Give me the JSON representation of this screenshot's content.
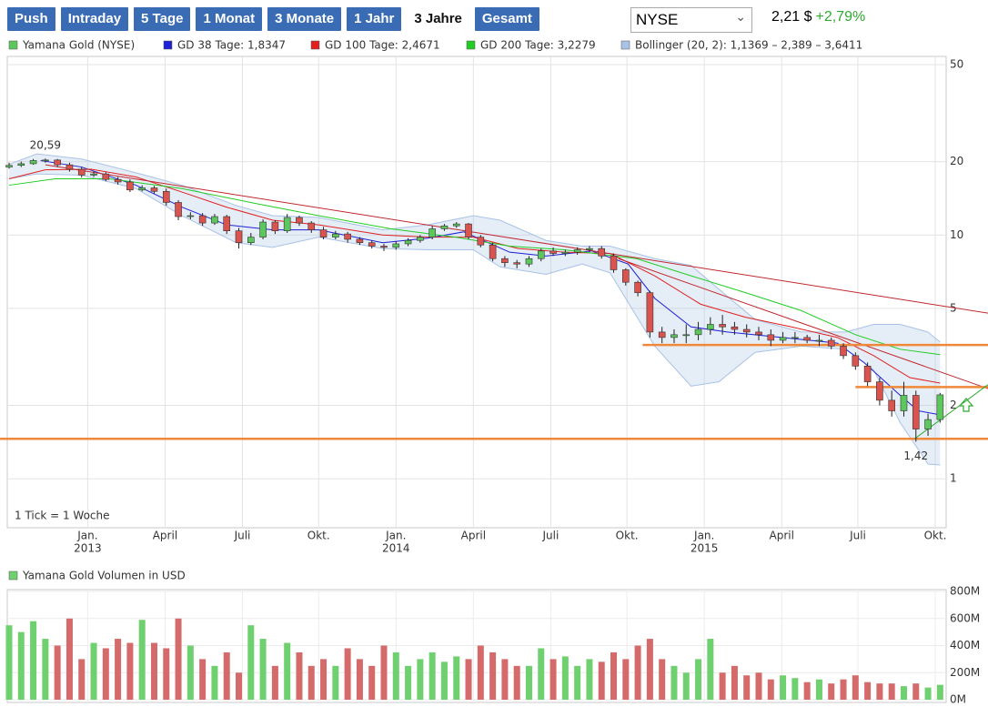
{
  "toolbar": {
    "tabs": [
      "Push",
      "Intraday",
      "5 Tage",
      "1 Monat",
      "3 Monate",
      "1 Jahr",
      "3 Jahre",
      "Gesamt"
    ],
    "active_tab": 6,
    "exchange": "NYSE",
    "price": "2,21 $",
    "change": "+2,79%"
  },
  "chart_data": [
    {
      "type": "candlestick",
      "yscale": "log",
      "grid": true,
      "xlim": [
        -0.15,
        77.5
      ],
      "ylim": [
        0.63,
        54
      ],
      "yticks": [
        1,
        2,
        5,
        10,
        20,
        50
      ],
      "xticks": [
        {
          "value": 6.5,
          "label": "Jan."
        },
        {
          "value": 12.9,
          "label": "April"
        },
        {
          "value": 19.3,
          "label": "Juli"
        },
        {
          "value": 25.6,
          "label": "Okt."
        },
        {
          "value": 32,
          "label": "Jan."
        },
        {
          "value": 38.4,
          "label": "April"
        },
        {
          "value": 44.8,
          "label": "Juli"
        },
        {
          "value": 51.1,
          "label": "Okt."
        },
        {
          "value": 57.5,
          "label": "Jan."
        },
        {
          "value": 63.9,
          "label": "April"
        },
        {
          "value": 70.2,
          "label": "Juli"
        },
        {
          "value": 76.6,
          "label": "Okt."
        }
      ],
      "xyears": [
        {
          "value": 6.5,
          "label": "2013"
        },
        {
          "value": 32,
          "label": "2014"
        },
        {
          "value": 57.5,
          "label": "2015"
        }
      ],
      "note": "1 Tick = 1 Woche",
      "candles": {
        "name": "Yamana Gold (NYSE)",
        "up_color": "#5cc75c",
        "down_color": "#d9534f",
        "open": [
          19.0,
          19.3,
          19.6,
          20.2,
          20.3,
          19.4,
          18.6,
          17.6,
          17.8,
          16.9,
          16.5,
          15.3,
          15.6,
          15.1,
          13.6,
          11.9,
          12.0,
          11.2,
          11.9,
          10.4,
          9.3,
          9.8,
          11.3,
          10.4,
          11.8,
          11.2,
          10.5,
          9.8,
          10.1,
          9.6,
          9.3,
          9.0,
          8.9,
          9.2,
          9.5,
          9.8,
          10.6,
          10.9,
          11.1,
          9.8,
          9.1,
          8.0,
          7.7,
          7.6,
          8.0,
          8.6,
          8.4,
          8.5,
          8.7,
          8.8,
          8.2,
          7.2,
          6.4,
          5.8,
          4.0,
          3.8,
          3.9,
          3.9,
          4.1,
          4.3,
          4.2,
          4.1,
          4.0,
          3.9,
          3.7,
          3.8,
          3.8,
          3.7,
          3.7,
          3.5,
          3.2,
          2.9,
          2.5,
          2.1,
          1.9,
          2.2,
          1.6,
          1.75
        ],
        "high": [
          19.8,
          20.0,
          20.5,
          20.59,
          20.5,
          19.8,
          19.0,
          18.2,
          18.1,
          17.3,
          16.9,
          16.0,
          15.9,
          15.5,
          13.9,
          12.4,
          12.3,
          12.2,
          12.1,
          10.7,
          10.2,
          11.6,
          11.5,
          12.2,
          12.0,
          11.4,
          10.8,
          10.4,
          10.3,
          9.8,
          9.5,
          9.2,
          9.4,
          9.7,
          10.0,
          10.9,
          11.1,
          11.3,
          11.2,
          10.0,
          9.3,
          8.2,
          7.9,
          8.2,
          8.8,
          8.9,
          8.7,
          8.9,
          9.0,
          9.0,
          8.4,
          7.3,
          6.5,
          5.9,
          4.2,
          4.1,
          4.3,
          4.4,
          4.6,
          4.7,
          4.4,
          4.3,
          4.2,
          4.1,
          4.0,
          4.0,
          3.9,
          3.9,
          3.8,
          3.6,
          3.3,
          3.0,
          2.6,
          2.3,
          2.5,
          2.3,
          1.85,
          2.25
        ],
        "low": [
          18.7,
          19.0,
          19.4,
          19.8,
          19.0,
          18.2,
          17.2,
          17.3,
          16.6,
          16.1,
          15.0,
          15.1,
          14.8,
          13.2,
          11.5,
          11.6,
          10.9,
          11.0,
          10.1,
          8.8,
          9.1,
          9.6,
          10.1,
          10.2,
          10.9,
          10.2,
          9.6,
          9.6,
          9.3,
          9.1,
          8.8,
          8.6,
          8.7,
          9.0,
          9.3,
          9.6,
          10.4,
          10.7,
          9.6,
          8.9,
          7.8,
          7.4,
          7.3,
          7.4,
          7.8,
          8.2,
          8.2,
          8.3,
          8.5,
          8.0,
          7.0,
          6.2,
          5.6,
          3.8,
          3.6,
          3.6,
          3.6,
          3.7,
          3.9,
          3.9,
          3.9,
          3.8,
          3.7,
          3.5,
          3.6,
          3.6,
          3.6,
          3.5,
          3.4,
          3.1,
          2.8,
          2.4,
          2.0,
          1.8,
          1.8,
          1.42,
          1.5,
          1.7
        ],
        "close": [
          19.3,
          19.6,
          20.2,
          20.3,
          19.4,
          18.6,
          17.6,
          17.8,
          16.9,
          16.5,
          15.3,
          15.6,
          15.1,
          13.6,
          11.9,
          12.0,
          11.2,
          11.9,
          10.4,
          9.3,
          9.8,
          11.3,
          10.4,
          11.8,
          11.2,
          10.5,
          9.8,
          10.1,
          9.6,
          9.3,
          9.0,
          8.9,
          9.2,
          9.5,
          9.8,
          10.6,
          10.9,
          11.1,
          9.8,
          9.1,
          8.0,
          7.7,
          7.6,
          8.0,
          8.6,
          8.4,
          8.5,
          8.7,
          8.8,
          8.2,
          7.2,
          6.4,
          5.8,
          4.0,
          3.8,
          3.9,
          3.9,
          4.1,
          4.3,
          4.2,
          4.1,
          4.0,
          3.9,
          3.7,
          3.8,
          3.8,
          3.7,
          3.7,
          3.5,
          3.2,
          2.9,
          2.5,
          2.1,
          1.9,
          2.2,
          1.6,
          1.75,
          2.21
        ]
      },
      "series": [
        {
          "name": "GD 38 Tage: 1,8347",
          "color": "#1f1fd6",
          "x": [
            2.6,
            6,
            10.5,
            14.3,
            18,
            21.8,
            25.6,
            30.9,
            34.6,
            37.6,
            41.4,
            44.4,
            48.2,
            51.2,
            53.4,
            56.4,
            59.4,
            63.9,
            68.5,
            70.7,
            73.7,
            75.2,
            77
          ],
          "values": [
            20.2,
            19,
            16,
            13,
            11,
            10.5,
            10.5,
            9.3,
            9.7,
            10.3,
            8.5,
            8.2,
            8.6,
            7.6,
            5.5,
            4.2,
            4.0,
            3.8,
            3.6,
            3.0,
            2.2,
            1.9,
            1.83
          ]
        },
        {
          "name": "GD 100 Tage: 2,4671",
          "color": "#e02020",
          "x": [
            0,
            3,
            6.8,
            10.5,
            14.3,
            18,
            21.8,
            25.6,
            30.9,
            34.6,
            38.4,
            42.1,
            45.9,
            49.7,
            53.4,
            57.2,
            60.9,
            64.7,
            68.5,
            71.5,
            74.5,
            77
          ],
          "values": [
            17,
            18.5,
            18.6,
            17.3,
            15,
            13,
            11.5,
            11,
            10,
            9.8,
            9.8,
            8.8,
            8.5,
            8.4,
            6.8,
            5.2,
            4.6,
            4.2,
            3.8,
            3.2,
            2.6,
            2.47
          ]
        },
        {
          "name": "GD 200 Tage: 3,2279",
          "color": "#22cc22",
          "x": [
            0,
            3.8,
            8.3,
            14.3,
            20.3,
            25.6,
            31.6,
            36.9,
            41.4,
            45.9,
            51.9,
            56.4,
            60.9,
            65.5,
            70,
            73.7,
            77
          ],
          "values": [
            16,
            17,
            17,
            15.5,
            13.5,
            12,
            10.6,
            9.8,
            9,
            8.7,
            8.0,
            6.8,
            5.8,
            4.9,
            3.9,
            3.4,
            3.23
          ]
        }
      ],
      "band": {
        "name": "Bollinger (20, 2): 1,1369 – 2,389 – 3,6411",
        "color": "#a9c2e6",
        "x": [
          0,
          2.3,
          6,
          10.5,
          14.3,
          18.8,
          21.8,
          25.6,
          30.9,
          34.6,
          38.4,
          40.6,
          44.4,
          47.4,
          49.7,
          53.4,
          56.4,
          58.7,
          61.7,
          65.5,
          69.2,
          71.5,
          73.7,
          76,
          77
        ],
        "upper": [
          19.5,
          21.5,
          20.5,
          18,
          16,
          13.2,
          12,
          11.8,
          10.5,
          11,
          12,
          11.5,
          9.5,
          9.0,
          9.0,
          8.0,
          7.5,
          6.0,
          4.5,
          4.0,
          4.0,
          4.3,
          4.3,
          4.0,
          3.64
        ],
        "lower": [
          17,
          17.8,
          17.6,
          15.5,
          12,
          9.3,
          8.9,
          9.8,
          8.8,
          8.7,
          8.7,
          7.4,
          6.9,
          7.6,
          7.0,
          3.5,
          2.4,
          2.5,
          3.3,
          3.5,
          3.4,
          2.8,
          1.7,
          1.15,
          1.14
        ]
      },
      "annotations": [
        {
          "label": "20,59",
          "x": 3,
          "value": 20.59,
          "position": "above"
        },
        {
          "label": "1,42",
          "x": 75,
          "value": 1.42,
          "position": "below"
        }
      ],
      "levels": [
        {
          "color": "#c0282d",
          "x": [
            3,
            81
          ],
          "values": [
            19.4,
            4.78
          ]
        },
        {
          "color": "#c0282d",
          "x": [
            50.4,
            81
          ],
          "values": [
            8.0,
            2.34
          ]
        },
        {
          "color": "#f0883a",
          "x": [
            52.4,
            81
          ],
          "values": [
            3.54,
            3.54
          ]
        },
        {
          "color": "#f0883a",
          "x": [
            -0.75,
            81
          ],
          "values": [
            1.46,
            1.46
          ]
        },
        {
          "color": "#f0883a",
          "x": [
            70,
            81
          ],
          "values": [
            2.38,
            2.38
          ]
        },
        {
          "color": "#2eaa2e",
          "x": [
            74.9,
            81
          ],
          "values": [
            1.46,
            2.44
          ]
        }
      ]
    },
    {
      "type": "bar",
      "title": "Yamana Gold Volumen in USD",
      "up_color": "#6fd06f",
      "down_color": "#d46a6a",
      "xlim": [
        -0.15,
        77.5
      ],
      "ylim": [
        0,
        800
      ],
      "yticks": [
        {
          "value": 0,
          "label": "0M"
        },
        {
          "value": 200,
          "label": "200M"
        },
        {
          "value": 400,
          "label": "400M"
        },
        {
          "value": 600,
          "label": "600M"
        },
        {
          "value": 800,
          "label": "800M"
        }
      ],
      "values": [
        550,
        500,
        580,
        450,
        400,
        600,
        300,
        420,
        380,
        450,
        420,
        590,
        420,
        380,
        600,
        400,
        300,
        250,
        350,
        200,
        550,
        450,
        250,
        420,
        350,
        250,
        300,
        250,
        380,
        300,
        250,
        400,
        350,
        250,
        300,
        350,
        280,
        320,
        300,
        400,
        350,
        300,
        250,
        250,
        380,
        300,
        320,
        250,
        300,
        280,
        350,
        300,
        400,
        450,
        300,
        250,
        200,
        300,
        450,
        200,
        250,
        180,
        200,
        150,
        180,
        160,
        130,
        150,
        120,
        150,
        180,
        130,
        120,
        120,
        100,
        120,
        90,
        110
      ]
    }
  ]
}
